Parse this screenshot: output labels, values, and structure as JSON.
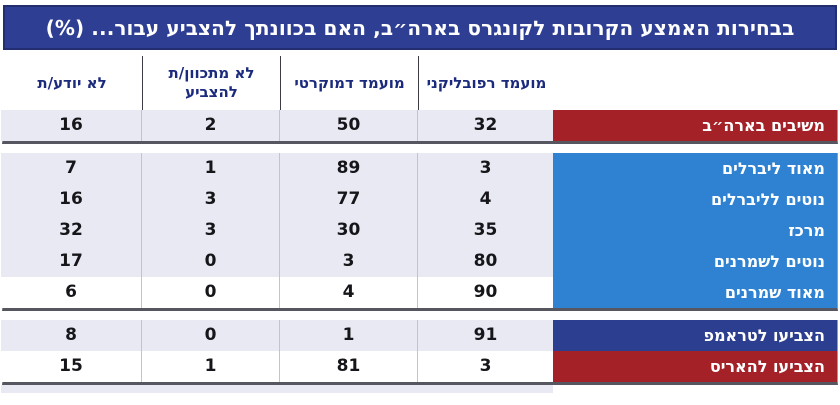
{
  "title": "בבחירות האמצע הקרובות לקונגרס בארה״ב, האם בכוונתך להצביע עבור... (%)",
  "columns": [
    "מועמד רפובליקני",
    "מועמד דמוקרטי",
    "לא מתכוון/ת להצביע",
    "לא יודע/ת"
  ],
  "colors": {
    "title_bg": "#2e3e93",
    "red_label": "#a32127",
    "blue_label": "#2f82d2",
    "navy_label": "#2c3e8f",
    "row_stripe": "#e9e9f3",
    "row_white": "#ffffff",
    "header_text": "#1b2a7d"
  },
  "blocks": [
    {
      "rows": [
        {
          "label": "משיבים בארה״ב",
          "label_bg": "#a32127",
          "row_bg": "#e9e9f3",
          "values": [
            32,
            50,
            2,
            16
          ]
        }
      ]
    },
    {
      "rows": [
        {
          "label": "מאוד ליברלים",
          "label_bg": "#2f82d2",
          "row_bg": "#e9e9f3",
          "values": [
            3,
            89,
            1,
            7
          ]
        },
        {
          "label": "נוטים לליברלים",
          "label_bg": "#2f82d2",
          "row_bg": "#e9e9f3",
          "values": [
            4,
            77,
            3,
            16
          ]
        },
        {
          "label": "מרכז",
          "label_bg": "#2f82d2",
          "row_bg": "#e9e9f3",
          "values": [
            35,
            30,
            3,
            32
          ]
        },
        {
          "label": "נוטים לשמרנים",
          "label_bg": "#2f82d2",
          "row_bg": "#e9e9f3",
          "values": [
            80,
            3,
            0,
            17
          ]
        },
        {
          "label": "מאוד שמרנים",
          "label_bg": "#2f82d2",
          "row_bg": "#ffffff",
          "values": [
            90,
            4,
            0,
            6
          ]
        }
      ]
    },
    {
      "rows": [
        {
          "label": "הצביעו לטראמפ",
          "label_bg": "#2c3e8f",
          "row_bg": "#e9e9f3",
          "values": [
            91,
            1,
            0,
            8
          ]
        },
        {
          "label": "הצביעו להאריס",
          "label_bg": "#a32127",
          "row_bg": "#ffffff",
          "values": [
            3,
            81,
            1,
            15
          ]
        }
      ]
    }
  ],
  "chart_data": {
    "type": "table",
    "title": "בבחירות האמצע הקרובות לקונגרס בארה״ב, האם בכוונתך להצביע עבור... (%)",
    "columns": [
      "מועמד רפובליקני",
      "מועמד דמוקרטי",
      "לא מתכוון/ת להצביע",
      "לא יודע/ת"
    ],
    "rows": [
      {
        "group": "משיבים בארה״ב",
        "values": [
          32,
          50,
          2,
          16
        ]
      },
      {
        "group": "מאוד ליברלים",
        "values": [
          3,
          89,
          1,
          7
        ]
      },
      {
        "group": "נוטים לליברלים",
        "values": [
          4,
          77,
          3,
          16
        ]
      },
      {
        "group": "מרכז",
        "values": [
          35,
          30,
          3,
          32
        ]
      },
      {
        "group": "נוטים לשמרנים",
        "values": [
          80,
          3,
          0,
          17
        ]
      },
      {
        "group": "מאוד שמרנים",
        "values": [
          90,
          4,
          0,
          6
        ]
      },
      {
        "group": "הצביעו לטראמפ",
        "values": [
          91,
          1,
          0,
          8
        ]
      },
      {
        "group": "הצביעו להאריס",
        "values": [
          3,
          81,
          1,
          15
        ]
      }
    ],
    "units": "percent"
  }
}
